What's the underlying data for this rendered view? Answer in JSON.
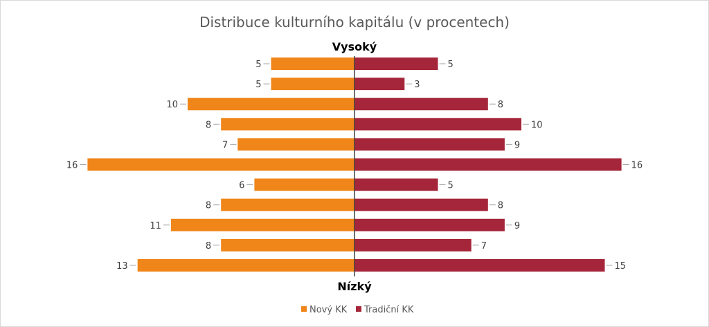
{
  "chart_data": {
    "type": "bar",
    "orientation": "horizontal-diverging",
    "title": "Distribuce kulturního kapitálu (v procentech)",
    "top_label": "Vysoký",
    "bottom_label": "Nízký",
    "series": [
      {
        "name": "Nový KK",
        "color": "#F08519",
        "side": "left",
        "values": [
          5,
          5,
          10,
          8,
          7,
          16,
          6,
          8,
          11,
          8,
          13
        ]
      },
      {
        "name": "Tradiční KK",
        "color": "#A5263A",
        "side": "right",
        "values": [
          5,
          3,
          8,
          10,
          9,
          16,
          5,
          8,
          9,
          7,
          15
        ]
      }
    ],
    "legend_position": "bottom",
    "grid": false
  }
}
